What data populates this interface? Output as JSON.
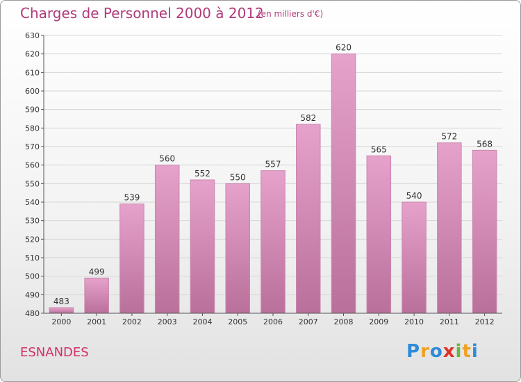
{
  "header": {
    "title": "Charges de Personnel 2000 à 2012",
    "subtitle": "(en milliers d'€)"
  },
  "footer": {
    "commune": "ESNANDES",
    "logo_letters": [
      "P",
      "r",
      "o",
      "x",
      "i",
      "t",
      "i"
    ],
    "logo_colors": [
      "#2e8bd8",
      "#f0a020",
      "#2e8bd8",
      "#e0302a",
      "#6bb53a",
      "#f0a020",
      "#2e8bd8"
    ]
  },
  "colors": {
    "bar_top": "#e6a2cb",
    "bar_bottom": "#b9709a",
    "bar_edge": "#c987ad",
    "axis": "#555555",
    "grid": "#d6d6d6"
  },
  "chart_data": {
    "type": "bar",
    "title": "Charges de Personnel 2000 à 2012",
    "subtitle": "(en milliers d'€)",
    "categories": [
      "2000",
      "2001",
      "2002",
      "2003",
      "2004",
      "2005",
      "2006",
      "2007",
      "2008",
      "2009",
      "2010",
      "2011",
      "2012"
    ],
    "values": [
      483,
      499,
      539,
      560,
      552,
      550,
      557,
      582,
      620,
      565,
      540,
      572,
      568
    ],
    "ylim": [
      480,
      630
    ],
    "ytick_step": 10,
    "grid": true,
    "xlabel": "",
    "ylabel": ""
  }
}
